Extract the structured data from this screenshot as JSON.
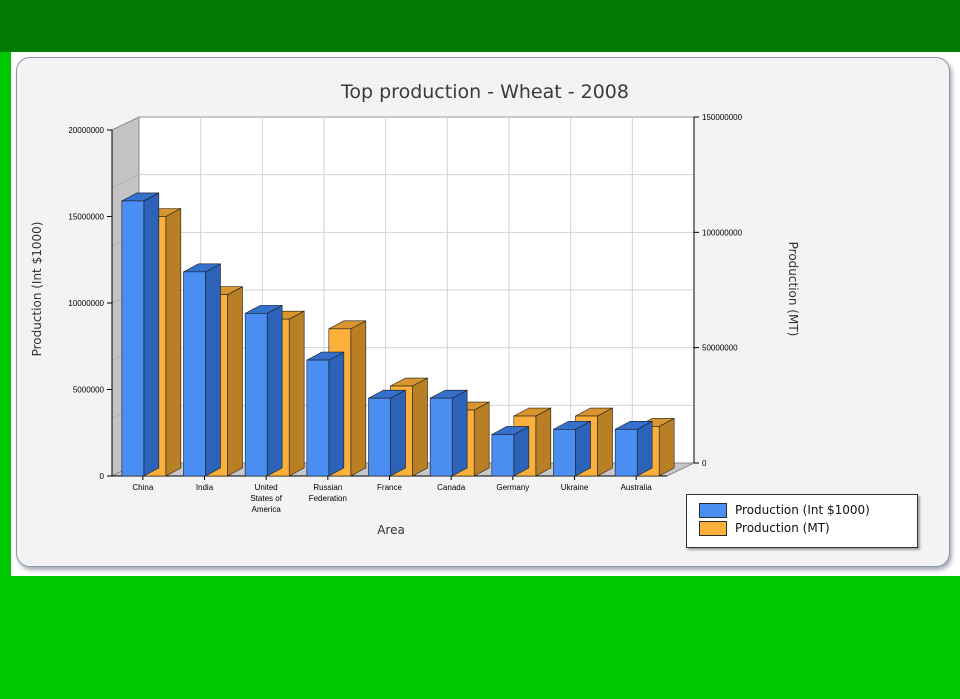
{
  "colors": {
    "series1": "#4a8ef2",
    "series1_side": "#2c62b8",
    "series1_top": "#3470cc",
    "series2": "#fbb03b",
    "series2_side": "#b87f24",
    "series2_top": "#d9962e",
    "header_band": "#007a00",
    "page_band": "#00c800"
  },
  "chart_data": {
    "type": "bar",
    "style": "3d-clustered",
    "title": "Top production - Wheat - 2008",
    "xlabel": "Area",
    "ylabel_left": "Production (Int $1000)",
    "ylabel_right": "Production (MT)",
    "ylim_left": [
      0,
      20000000
    ],
    "ylim_right": [
      0,
      150000000
    ],
    "yticks_left": [
      "0",
      "5000000",
      "10000000",
      "15000000",
      "20000000"
    ],
    "yticks_right": [
      "0",
      "50000000",
      "100000000",
      "150000000"
    ],
    "grid": true,
    "legend_position": "bottom-right",
    "categories": [
      "China",
      "India",
      "United States of America",
      "Russian Federation",
      "France",
      "Canada",
      "Germany",
      "Ukraine",
      "Australia"
    ],
    "category_lines": [
      [
        "China"
      ],
      [
        "India"
      ],
      [
        "United",
        "States of",
        "America"
      ],
      [
        "Russian",
        "Federation"
      ],
      [
        "France"
      ],
      [
        "Canada"
      ],
      [
        "Germany"
      ],
      [
        "Ukraine"
      ],
      [
        "Australia"
      ]
    ],
    "series": [
      {
        "name": "Production (Int $1000)",
        "axis": "left",
        "values": [
          15900000,
          11800000,
          9400000,
          6700000,
          4500000,
          4500000,
          2400000,
          2700000,
          2700000
        ]
      },
      {
        "name": "Production (MT)",
        "axis": "right",
        "values": [
          112500000,
          78600000,
          68000000,
          63800000,
          39000000,
          28600000,
          26000000,
          26000000,
          21500000
        ]
      }
    ]
  }
}
